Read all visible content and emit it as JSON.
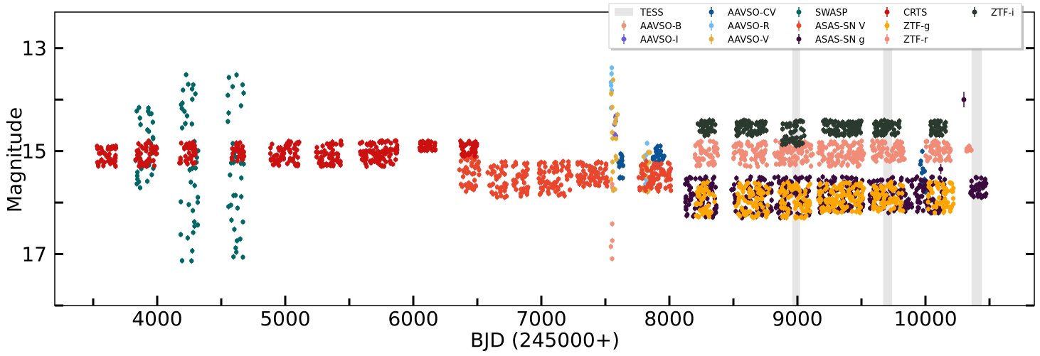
{
  "chart_data": {
    "type": "scatter",
    "xlabel": "BJD (245000+)",
    "ylabel": "Magnitude",
    "xlim": [
      3200,
      10850
    ],
    "ylim": [
      18.0,
      12.3
    ],
    "y_inverted": true,
    "x_ticks": [
      4000,
      5000,
      6000,
      7000,
      8000,
      9000,
      10000
    ],
    "x_tick_labels": [
      "4000",
      "5000",
      "6000",
      "7000",
      "8000",
      "9000",
      "10000"
    ],
    "y_ticks": [
      13,
      15,
      17
    ],
    "y_tick_labels": [
      "13",
      "15",
      "17"
    ],
    "grid": false,
    "legend_position": "top-right",
    "shaded_regions": {
      "name": "TESS",
      "color": "#e6e6e6",
      "ranges": [
        [
          8960,
          9020
        ],
        [
          9670,
          9740
        ],
        [
          10360,
          10440
        ]
      ]
    },
    "series": [
      {
        "name": "AAVSO-B",
        "color": "#f0937a",
        "marker": "o",
        "segments": [
          [
            7540,
            7560,
            15.0,
            17.1
          ]
        ]
      },
      {
        "name": "AAVSO-I",
        "color": "#6a5ddb",
        "marker": "o",
        "segments": [
          [
            7570,
            7585,
            14.2,
            14.8
          ]
        ]
      },
      {
        "name": "AAVSO-CV",
        "color": "#0b5394",
        "marker": "o",
        "segments": [
          [
            7590,
            7640,
            15.0,
            15.6
          ],
          [
            7870,
            7960,
            14.9,
            15.3
          ],
          [
            9960,
            10010,
            15.0,
            15.8
          ]
        ]
      },
      {
        "name": "AAVSO-R",
        "color": "#6cbcf5",
        "marker": "o",
        "segments": [
          [
            7540,
            7555,
            13.2,
            14.6
          ],
          [
            7810,
            7830,
            14.4,
            15.8
          ]
        ]
      },
      {
        "name": "AAVSO-V",
        "color": "#e3ad3c",
        "marker": "o",
        "segments": [
          [
            7540,
            7600,
            13.6,
            15.8
          ],
          [
            7780,
            7850,
            15.0,
            15.8
          ]
        ]
      },
      {
        "name": "SWASP",
        "color": "#006666",
        "marker": "o",
        "segments": [
          [
            3830,
            3880,
            14.0,
            15.8
          ],
          [
            3920,
            3980,
            14.1,
            15.6
          ],
          [
            4180,
            4320,
            13.5,
            17.2
          ],
          [
            4550,
            4680,
            13.4,
            17.2
          ]
        ]
      },
      {
        "name": "ASAS-SN V",
        "color": "#e8472e",
        "marker": "o",
        "segments": [
          [
            6360,
            6520,
            15.1,
            15.8
          ],
          [
            6580,
            6730,
            15.2,
            15.9
          ],
          [
            6770,
            6900,
            15.2,
            15.9
          ],
          [
            6980,
            7240,
            15.2,
            15.9
          ],
          [
            7280,
            7520,
            15.2,
            15.7
          ],
          [
            7760,
            8020,
            15.2,
            15.8
          ]
        ]
      },
      {
        "name": "ASAS-SN g",
        "color": "#3b0a3e",
        "marker": "o",
        "segments": [
          [
            8120,
            8380,
            15.5,
            16.3
          ],
          [
            8480,
            8800,
            15.5,
            16.3
          ],
          [
            8820,
            9100,
            15.5,
            16.3
          ],
          [
            9160,
            9520,
            15.5,
            16.2
          ],
          [
            9560,
            9900,
            15.5,
            16.2
          ],
          [
            9920,
            10160,
            15.5,
            16.2
          ],
          [
            10350,
            10480,
            15.5,
            15.9
          ]
        ]
      },
      {
        "name": "CRTS",
        "color": "#cc1111",
        "marker": "o",
        "segments": [
          [
            3520,
            3680,
            14.9,
            15.3
          ],
          [
            3830,
            4000,
            14.8,
            15.3
          ],
          [
            4170,
            4300,
            14.8,
            15.3
          ],
          [
            4580,
            4680,
            14.8,
            15.2
          ],
          [
            4880,
            5110,
            14.8,
            15.3
          ],
          [
            5240,
            5440,
            14.8,
            15.3
          ],
          [
            5580,
            5880,
            14.8,
            15.3
          ],
          [
            6050,
            6180,
            14.8,
            15.0
          ],
          [
            6360,
            6500,
            14.8,
            15.1
          ]
        ]
      },
      {
        "name": "ZTF-g",
        "color": "#ffa500",
        "marker": "o",
        "segments": [
          [
            8200,
            8360,
            15.6,
            16.3
          ],
          [
            8520,
            8780,
            15.6,
            16.3
          ],
          [
            8860,
            9100,
            15.6,
            16.3
          ],
          [
            9160,
            9520,
            15.6,
            16.2
          ],
          [
            9580,
            9830,
            15.6,
            16.2
          ],
          [
            10020,
            10220,
            15.6,
            16.2
          ]
        ]
      },
      {
        "name": "ZTF-r",
        "color": "#f08c78",
        "marker": "o",
        "segments": [
          [
            8200,
            8380,
            14.8,
            15.3
          ],
          [
            8500,
            8760,
            14.8,
            15.3
          ],
          [
            8820,
            9120,
            14.8,
            15.3
          ],
          [
            9160,
            9520,
            14.8,
            15.3
          ],
          [
            9580,
            9840,
            14.8,
            15.2
          ],
          [
            10000,
            10200,
            14.8,
            15.2
          ],
          [
            10320,
            10360,
            14.9,
            15.0
          ]
        ]
      },
      {
        "name": "ZTF-i",
        "color": "#2b3a2e",
        "marker": "o",
        "segments": [
          [
            8220,
            8360,
            14.4,
            14.7
          ],
          [
            8520,
            8760,
            14.4,
            14.7
          ],
          [
            8880,
            9060,
            14.4,
            14.9
          ],
          [
            9200,
            9500,
            14.4,
            14.7
          ],
          [
            9600,
            9800,
            14.4,
            14.7
          ],
          [
            10040,
            10160,
            14.4,
            14.7
          ]
        ]
      }
    ],
    "annotations": [
      {
        "series": "ASAS-SN g",
        "x": 10300,
        "y": 14.0,
        "yerr": 0.15
      },
      {
        "series": "ASAS-SN g",
        "x": 10120,
        "y": 15.35,
        "yerr": 0.1
      }
    ]
  }
}
